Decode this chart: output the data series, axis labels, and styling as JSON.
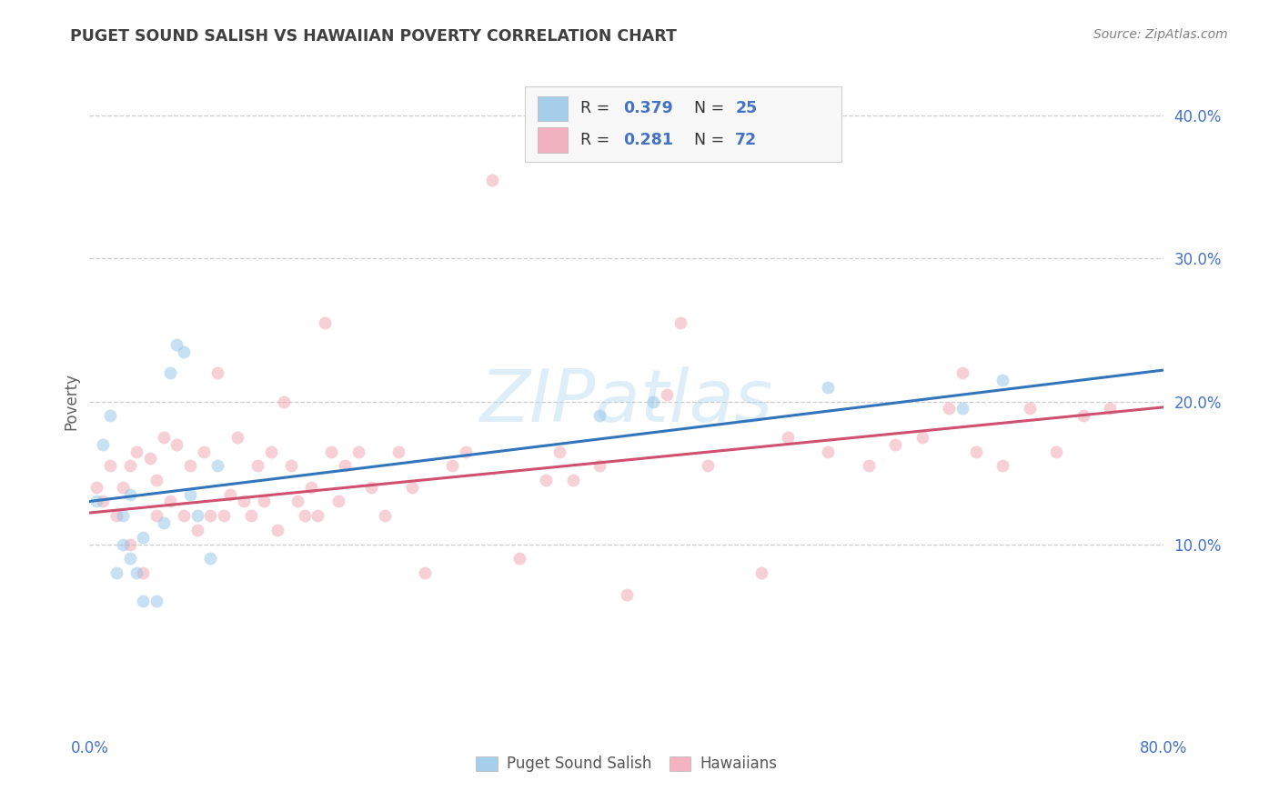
{
  "title": "PUGET SOUND SALISH VS HAWAIIAN POVERTY CORRELATION CHART",
  "source": "Source: ZipAtlas.com",
  "ylabel": "Poverty",
  "xlim": [
    0.0,
    0.8
  ],
  "ylim": [
    -0.03,
    0.43
  ],
  "grid_color": "#cccccc",
  "watermark": "ZIPatlas",
  "blue_color": "#90c4e8",
  "pink_color": "#f0a0b0",
  "blue_line_color": "#3375bb",
  "pink_line_color": "#d05070",
  "blue_r": 0.379,
  "blue_n": 25,
  "pink_r": 0.281,
  "pink_n": 72,
  "blue_points_x": [
    0.005,
    0.01,
    0.015,
    0.02,
    0.025,
    0.025,
    0.03,
    0.03,
    0.035,
    0.04,
    0.04,
    0.05,
    0.055,
    0.06,
    0.065,
    0.07,
    0.075,
    0.08,
    0.09,
    0.095,
    0.38,
    0.42,
    0.55,
    0.65,
    0.68
  ],
  "blue_points_y": [
    0.13,
    0.17,
    0.19,
    0.08,
    0.1,
    0.12,
    0.09,
    0.135,
    0.08,
    0.06,
    0.105,
    0.06,
    0.115,
    0.22,
    0.24,
    0.235,
    0.135,
    0.12,
    0.09,
    0.155,
    0.19,
    0.2,
    0.21,
    0.195,
    0.215
  ],
  "pink_points_x": [
    0.005,
    0.01,
    0.015,
    0.02,
    0.025,
    0.03,
    0.03,
    0.035,
    0.04,
    0.045,
    0.05,
    0.05,
    0.055,
    0.06,
    0.065,
    0.07,
    0.075,
    0.08,
    0.085,
    0.09,
    0.095,
    0.1,
    0.105,
    0.11,
    0.115,
    0.12,
    0.125,
    0.13,
    0.135,
    0.14,
    0.145,
    0.15,
    0.155,
    0.16,
    0.165,
    0.17,
    0.175,
    0.18,
    0.185,
    0.19,
    0.2,
    0.21,
    0.22,
    0.23,
    0.24,
    0.25,
    0.27,
    0.28,
    0.3,
    0.32,
    0.34,
    0.35,
    0.36,
    0.38,
    0.4,
    0.43,
    0.44,
    0.46,
    0.5,
    0.52,
    0.55,
    0.58,
    0.6,
    0.62,
    0.64,
    0.65,
    0.66,
    0.68,
    0.7,
    0.72,
    0.74,
    0.76
  ],
  "pink_points_y": [
    0.14,
    0.13,
    0.155,
    0.12,
    0.14,
    0.1,
    0.155,
    0.165,
    0.08,
    0.16,
    0.12,
    0.145,
    0.175,
    0.13,
    0.17,
    0.12,
    0.155,
    0.11,
    0.165,
    0.12,
    0.22,
    0.12,
    0.135,
    0.175,
    0.13,
    0.12,
    0.155,
    0.13,
    0.165,
    0.11,
    0.2,
    0.155,
    0.13,
    0.12,
    0.14,
    0.12,
    0.255,
    0.165,
    0.13,
    0.155,
    0.165,
    0.14,
    0.12,
    0.165,
    0.14,
    0.08,
    0.155,
    0.165,
    0.355,
    0.09,
    0.145,
    0.165,
    0.145,
    0.155,
    0.065,
    0.205,
    0.255,
    0.155,
    0.08,
    0.175,
    0.165,
    0.155,
    0.17,
    0.175,
    0.195,
    0.22,
    0.165,
    0.155,
    0.195,
    0.165,
    0.19,
    0.195
  ],
  "blue_line_x0": 0.0,
  "blue_line_y0": 0.13,
  "blue_line_x1": 0.8,
  "blue_line_y1": 0.222,
  "pink_line_x0": 0.0,
  "pink_line_y0": 0.122,
  "pink_line_x1": 0.8,
  "pink_line_y1": 0.196,
  "bg_color": "#ffffff",
  "marker_size": 100,
  "marker_alpha": 0.5
}
